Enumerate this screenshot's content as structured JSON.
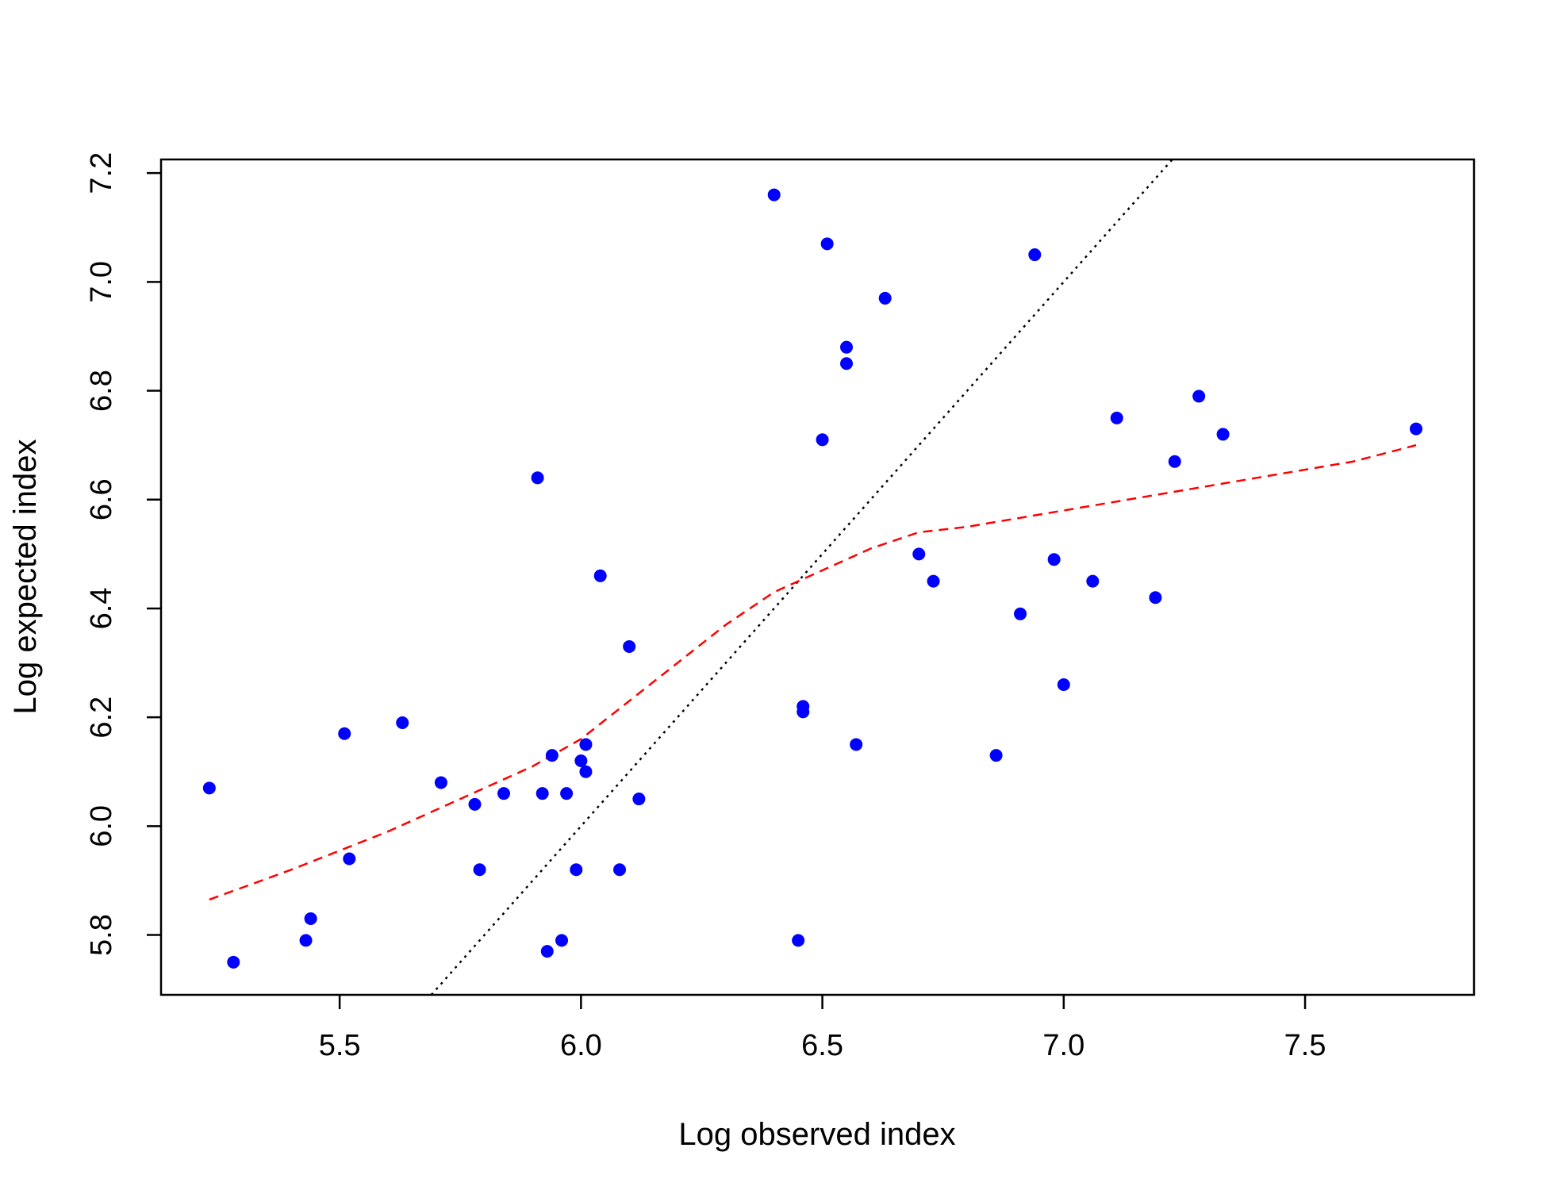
{
  "chart_data": {
    "type": "scatter",
    "title": "",
    "xlabel": "Log observed index",
    "ylabel": "Log expected index",
    "xlim": [
      5.13,
      7.85
    ],
    "ylim": [
      5.69,
      7.225
    ],
    "xticks": [
      5.5,
      6.0,
      6.5,
      7.0,
      7.5
    ],
    "xtick_labels": [
      "5.5",
      "6.0",
      "6.5",
      "7.0",
      "7.5"
    ],
    "yticks": [
      5.8,
      6.0,
      6.2,
      6.4,
      6.6,
      6.8,
      7.0,
      7.2
    ],
    "ytick_labels": [
      "5.8",
      "6.0",
      "6.2",
      "6.4",
      "6.6",
      "6.8",
      "7.0",
      "7.2"
    ],
    "grid": false,
    "point_color": "#0000ff",
    "identity_line_color": "#000000",
    "smooth_line_color": "#ff0000",
    "points": {
      "x": [
        5.23,
        5.28,
        5.43,
        5.44,
        5.51,
        5.52,
        5.63,
        5.71,
        5.78,
        5.79,
        5.84,
        5.91,
        5.92,
        5.93,
        5.94,
        5.96,
        5.97,
        5.99,
        6.0,
        6.01,
        6.01,
        6.04,
        6.08,
        6.1,
        6.12,
        6.4,
        6.45,
        6.46,
        6.46,
        6.5,
        6.51,
        6.55,
        6.55,
        6.57,
        6.63,
        6.7,
        6.73,
        6.86,
        6.91,
        6.94,
        6.98,
        7.0,
        7.06,
        7.11,
        7.19,
        7.23,
        7.28,
        7.33,
        7.73
      ],
      "y": [
        6.07,
        5.75,
        5.79,
        5.83,
        6.17,
        5.94,
        6.19,
        6.08,
        6.04,
        5.92,
        6.06,
        6.64,
        6.06,
        5.77,
        6.13,
        5.79,
        6.06,
        5.92,
        6.12,
        6.15,
        6.1,
        6.46,
        5.92,
        6.33,
        6.05,
        7.16,
        5.79,
        6.21,
        6.22,
        6.71,
        7.07,
        6.85,
        6.88,
        6.15,
        6.97,
        6.5,
        6.45,
        6.13,
        6.39,
        7.05,
        6.49,
        6.26,
        6.45,
        6.75,
        6.42,
        6.67,
        6.79,
        6.72,
        6.73
      ]
    },
    "identity_line": {
      "x": [
        5.69,
        7.225
      ],
      "y": [
        5.69,
        7.225
      ]
    },
    "smooth_line": {
      "x": [
        5.23,
        5.4,
        5.6,
        5.8,
        5.9,
        6.0,
        6.1,
        6.2,
        6.3,
        6.4,
        6.5,
        6.6,
        6.7,
        6.8,
        7.0,
        7.2,
        7.4,
        7.6,
        7.73
      ],
      "y": [
        5.865,
        5.92,
        5.99,
        6.07,
        6.11,
        6.16,
        6.23,
        6.3,
        6.37,
        6.43,
        6.47,
        6.51,
        6.54,
        6.55,
        6.58,
        6.61,
        6.64,
        6.67,
        6.7
      ]
    }
  }
}
